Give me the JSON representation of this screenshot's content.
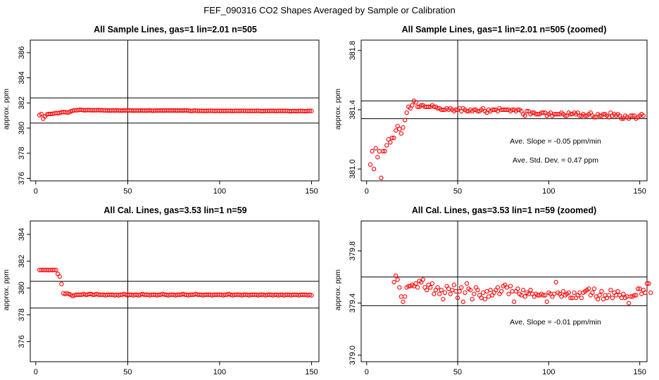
{
  "suptitle": "FEF_090316  CO2 Shapes Averaged by Sample or Calibration",
  "chart_data": [
    {
      "type": "scatter",
      "title": "All Sample Lines, gas=1 lin=2.01 n=505",
      "ylabel": "approx. ppm",
      "xlim": [
        -3,
        154
      ],
      "ylim": [
        375.8,
        387
      ],
      "xticks": [
        0,
        50,
        100,
        150
      ],
      "yticks": [
        376,
        378,
        380,
        382,
        384,
        386
      ],
      "hlines": [
        382.4,
        380.4
      ],
      "vline": 50,
      "annotations": [],
      "x_start": 2,
      "x_step": 1,
      "values": [
        381.03,
        381.12,
        380.75,
        380.93,
        381.08,
        381.12,
        381.12,
        381.14,
        381.16,
        381.2,
        381.18,
        381.21,
        381.26,
        381.27,
        381.27,
        381.24,
        381.25,
        381.33,
        381.38,
        381.42,
        381.41,
        381.43,
        381.46,
        381.45,
        381.42,
        381.42,
        381.43,
        381.43,
        381.42,
        381.42,
        381.42,
        381.42,
        381.43,
        381.42,
        381.42,
        381.41,
        381.41,
        381.4,
        381.4,
        381.4,
        381.41,
        381.4,
        381.41,
        381.4,
        381.39,
        381.4,
        381.4,
        381.41,
        381.39,
        381.41,
        381.4,
        381.39,
        381.39,
        381.4,
        381.39,
        381.4,
        381.4,
        381.39,
        381.39,
        381.4,
        381.41,
        381.39,
        381.38,
        381.4,
        381.39,
        381.4,
        381.4,
        381.4,
        381.39,
        381.41,
        381.4,
        381.4,
        381.4,
        381.4,
        381.4,
        381.39,
        381.4,
        381.4,
        381.39,
        381.4,
        381.4,
        381.39,
        381.37,
        381.36,
        381.39,
        381.39,
        381.37,
        381.38,
        381.38,
        381.37,
        381.37,
        381.37,
        381.38,
        381.38,
        381.38,
        381.36,
        381.37,
        381.38,
        381.36,
        381.37,
        381.37,
        381.37,
        381.37,
        381.38,
        381.37,
        381.36,
        381.36,
        381.38,
        381.37,
        381.37,
        381.38,
        381.37,
        381.38,
        381.36,
        381.36,
        381.37,
        381.36,
        381.36,
        381.37,
        381.38,
        381.36,
        381.35,
        381.35,
        381.37,
        381.36,
        381.36,
        381.37,
        381.37,
        381.36,
        381.35,
        381.38,
        381.36,
        381.37,
        381.36,
        381.37,
        381.36,
        381.34,
        381.34,
        381.36,
        381.35,
        381.34,
        381.36,
        381.36,
        381.36,
        381.34,
        381.35,
        381.36,
        381.37,
        381.36
      ]
    },
    {
      "type": "scatter",
      "title": "All Sample Lines, gas=1 lin=2.01 n=505 (zoomed)",
      "ylabel": "approx. ppm",
      "xlim": [
        -3,
        154
      ],
      "ylim": [
        380.92,
        381.87
      ],
      "xticks": [
        0,
        50,
        100,
        150
      ],
      "yticks": [
        381.0,
        381.4,
        381.8
      ],
      "hlines": [
        381.46,
        381.34
      ],
      "vline": 50,
      "annotations": [
        "Ave. Slope =  -0.05  ppm/min",
        "Ave. Std. Dev. =  0.47  ppm"
      ],
      "x_start": 2,
      "x_step": 1,
      "values": [
        381.03,
        381.12,
        381.0,
        381.14,
        381.08,
        381.12,
        380.94,
        381.12,
        381.12,
        381.16,
        381.2,
        381.18,
        381.21,
        381.21,
        381.26,
        381.29,
        381.27,
        381.24,
        381.28,
        381.33,
        381.38,
        381.42,
        381.41,
        381.43,
        381.46,
        381.45,
        381.42,
        381.42,
        381.43,
        381.43,
        381.42,
        381.42,
        381.42,
        381.42,
        381.43,
        381.42,
        381.42,
        381.41,
        381.41,
        381.4,
        381.4,
        381.4,
        381.41,
        381.4,
        381.41,
        381.4,
        381.39,
        381.4,
        381.4,
        381.41,
        381.39,
        381.41,
        381.4,
        381.39,
        381.39,
        381.4,
        381.39,
        381.4,
        381.4,
        381.39,
        381.39,
        381.4,
        381.41,
        381.39,
        381.38,
        381.4,
        381.39,
        381.4,
        381.4,
        381.4,
        381.39,
        381.41,
        381.4,
        381.4,
        381.4,
        381.4,
        381.4,
        381.39,
        381.4,
        381.4,
        381.39,
        381.4,
        381.4,
        381.39,
        381.37,
        381.36,
        381.39,
        381.39,
        381.37,
        381.38,
        381.38,
        381.37,
        381.37,
        381.37,
        381.38,
        381.38,
        381.38,
        381.36,
        381.37,
        381.38,
        381.36,
        381.37,
        381.37,
        381.37,
        381.37,
        381.38,
        381.37,
        381.36,
        381.36,
        381.38,
        381.37,
        381.37,
        381.38,
        381.37,
        381.38,
        381.36,
        381.36,
        381.37,
        381.36,
        381.36,
        381.37,
        381.38,
        381.36,
        381.35,
        381.35,
        381.37,
        381.36,
        381.36,
        381.37,
        381.37,
        381.36,
        381.35,
        381.38,
        381.36,
        381.37,
        381.36,
        381.37,
        381.36,
        381.34,
        381.34,
        381.36,
        381.35,
        381.34,
        381.36,
        381.36,
        381.36,
        381.34,
        381.35,
        381.36,
        381.37,
        381.36
      ]
    },
    {
      "type": "scatter",
      "title": "All Cal. Lines, gas=3.53 lin=1 n=59",
      "ylabel": "approx. ppm",
      "xlim": [
        -3,
        154
      ],
      "ylim": [
        374.5,
        385
      ],
      "xticks": [
        0,
        50,
        100,
        150
      ],
      "yticks": [
        376,
        378,
        380,
        382,
        384
      ],
      "hlines": [
        380.5,
        378.5
      ],
      "vline": 50,
      "annotations": [],
      "x_start": 2,
      "x_step": 1,
      "values": [
        381.34,
        381.34,
        381.34,
        381.34,
        381.34,
        381.34,
        381.34,
        381.34,
        381.34,
        381.34,
        381.05,
        380.85,
        380.3,
        379.6,
        379.55,
        379.6,
        379.55,
        379.5,
        379.4,
        379.45,
        379.5,
        379.5,
        379.5,
        379.5,
        379.55,
        379.5,
        379.5,
        379.55,
        379.55,
        379.5,
        379.5,
        379.55,
        379.5,
        379.5,
        379.5,
        379.5,
        379.45,
        379.5,
        379.5,
        379.5,
        379.5,
        379.45,
        379.5,
        379.45,
        379.5,
        379.5,
        379.55,
        379.5,
        379.45,
        379.5,
        379.5,
        379.45,
        379.5,
        379.5,
        379.45,
        379.5,
        379.55,
        379.5,
        379.5,
        379.5,
        379.45,
        379.5,
        379.5,
        379.5,
        379.45,
        379.5,
        379.5,
        379.55,
        379.5,
        379.5,
        379.45,
        379.5,
        379.5,
        379.5,
        379.45,
        379.5,
        379.5,
        379.5,
        379.55,
        379.5,
        379.5,
        379.45,
        379.5,
        379.5,
        379.5,
        379.55,
        379.5,
        379.5,
        379.5,
        379.45,
        379.5,
        379.5,
        379.5,
        379.5,
        379.45,
        379.5,
        379.5,
        379.5,
        379.5,
        379.5,
        379.45,
        379.5,
        379.5,
        379.55,
        379.5,
        379.45,
        379.5,
        379.5,
        379.5,
        379.5,
        379.45,
        379.5,
        379.5,
        379.5,
        379.45,
        379.5,
        379.5,
        379.5,
        379.5,
        379.45,
        379.5,
        379.5,
        379.5,
        379.45,
        379.5,
        379.5,
        379.5,
        379.45,
        379.5,
        379.5,
        379.45,
        379.5,
        379.5,
        379.45,
        379.5,
        379.5,
        379.5,
        379.45,
        379.5,
        379.5,
        379.5,
        379.45,
        379.5,
        379.5,
        379.5,
        379.5,
        379.45,
        379.5,
        379.45
      ]
    },
    {
      "type": "scatter",
      "title": "All Cal. Lines, gas=3.53 lin=1 n=59 (zoomed)",
      "ylabel": "approx. ppm",
      "xlim": [
        -3,
        154
      ],
      "ylim": [
        378.95,
        380.03
      ],
      "xticks": [
        0,
        50,
        100,
        150
      ],
      "yticks": [
        379.0,
        379.4,
        379.8
      ],
      "hlines": [
        379.6,
        379.38
      ],
      "vline": 50,
      "annotations": [
        "Ave. Slope =  -0.01  ppm/min"
      ],
      "x_start": 15,
      "x_step": 1,
      "values": [
        379.56,
        379.61,
        379.58,
        379.52,
        379.45,
        379.41,
        379.45,
        379.52,
        379.53,
        379.53,
        379.54,
        379.53,
        379.55,
        379.52,
        379.57,
        379.56,
        379.58,
        379.52,
        379.5,
        379.54,
        379.52,
        379.55,
        379.47,
        379.5,
        379.52,
        379.47,
        379.5,
        379.43,
        379.48,
        379.53,
        379.51,
        379.47,
        379.5,
        379.54,
        379.49,
        379.44,
        379.49,
        379.52,
        379.41,
        379.48,
        379.55,
        379.51,
        379.5,
        379.43,
        379.47,
        379.52,
        379.5,
        379.46,
        379.44,
        379.48,
        379.43,
        379.49,
        379.45,
        379.5,
        379.46,
        379.48,
        379.5,
        379.52,
        379.47,
        379.49,
        379.53,
        379.54,
        379.52,
        379.47,
        379.53,
        379.49,
        379.41,
        379.49,
        379.51,
        379.47,
        379.46,
        379.5,
        379.45,
        379.48,
        379.47,
        379.5,
        379.47,
        379.45,
        379.47,
        379.46,
        379.46,
        379.47,
        379.46,
        379.46,
        379.41,
        379.48,
        379.47,
        379.45,
        379.47,
        379.56,
        379.48,
        379.47,
        379.45,
        379.49,
        379.46,
        379.47,
        379.48,
        379.44,
        379.44,
        379.48,
        379.44,
        379.46,
        379.48,
        379.44,
        379.48,
        379.49,
        379.5,
        379.51,
        379.46,
        379.48,
        379.51,
        379.45,
        379.43,
        379.46,
        379.49,
        379.43,
        379.46,
        379.44,
        379.46,
        379.5,
        379.44,
        379.48,
        379.46,
        379.49,
        379.46,
        379.44,
        379.47,
        379.44,
        379.45,
        379.4,
        379.45,
        379.45,
        379.46,
        379.46,
        379.51,
        379.51,
        379.47,
        379.5,
        379.48,
        379.55,
        379.55,
        379.48
      ]
    }
  ]
}
